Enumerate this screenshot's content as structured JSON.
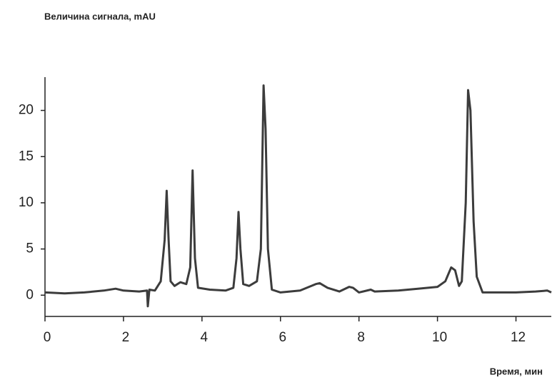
{
  "chart_data": {
    "type": "line",
    "y_label": "Величина сигнала, mAU",
    "x_label": "Время, мин",
    "xlim": [
      0,
      12.9
    ],
    "xticks": [
      0,
      2,
      4,
      6,
      8,
      10,
      12
    ],
    "ylim": [
      -2.3,
      23.6
    ],
    "yticks": [
      0,
      5,
      10,
      15,
      20
    ],
    "x": [
      0,
      0.5,
      1.0,
      1.5,
      1.8,
      2.0,
      2.4,
      2.6,
      2.62,
      2.66,
      2.8,
      2.95,
      3.05,
      3.1,
      3.15,
      3.2,
      3.3,
      3.45,
      3.6,
      3.7,
      3.76,
      3.82,
      3.9,
      4.2,
      4.6,
      4.8,
      4.88,
      4.93,
      4.98,
      5.05,
      5.2,
      5.4,
      5.5,
      5.57,
      5.62,
      5.68,
      5.78,
      6.0,
      6.5,
      6.9,
      7.0,
      7.2,
      7.5,
      7.75,
      7.85,
      8.0,
      8.3,
      8.4,
      9.0,
      9.5,
      10.0,
      10.2,
      10.35,
      10.45,
      10.55,
      10.62,
      10.72,
      10.78,
      10.84,
      10.92,
      11.0,
      11.15,
      11.5,
      12.0,
      12.5,
      12.8,
      12.9
    ],
    "series": [
      {
        "color": "#3c3c3c",
        "values": [
          0.3,
          0.2,
          0.3,
          0.5,
          0.7,
          0.5,
          0.4,
          0.5,
          -1.2,
          0.6,
          0.5,
          1.5,
          6,
          11.3,
          6,
          1.5,
          1.0,
          1.4,
          1.2,
          3,
          13.5,
          4,
          0.8,
          0.6,
          0.5,
          0.8,
          4,
          9,
          5,
          1.2,
          1.0,
          1.5,
          5,
          22.7,
          18,
          5,
          0.6,
          0.3,
          0.5,
          1.2,
          1.3,
          0.8,
          0.4,
          0.9,
          0.8,
          0.3,
          0.6,
          0.4,
          0.5,
          0.7,
          0.9,
          1.5,
          3,
          2.7,
          1.0,
          1.5,
          10,
          22.2,
          20,
          8,
          2,
          0.3,
          0.3,
          0.3,
          0.4,
          0.5,
          0.3
        ]
      }
    ]
  }
}
